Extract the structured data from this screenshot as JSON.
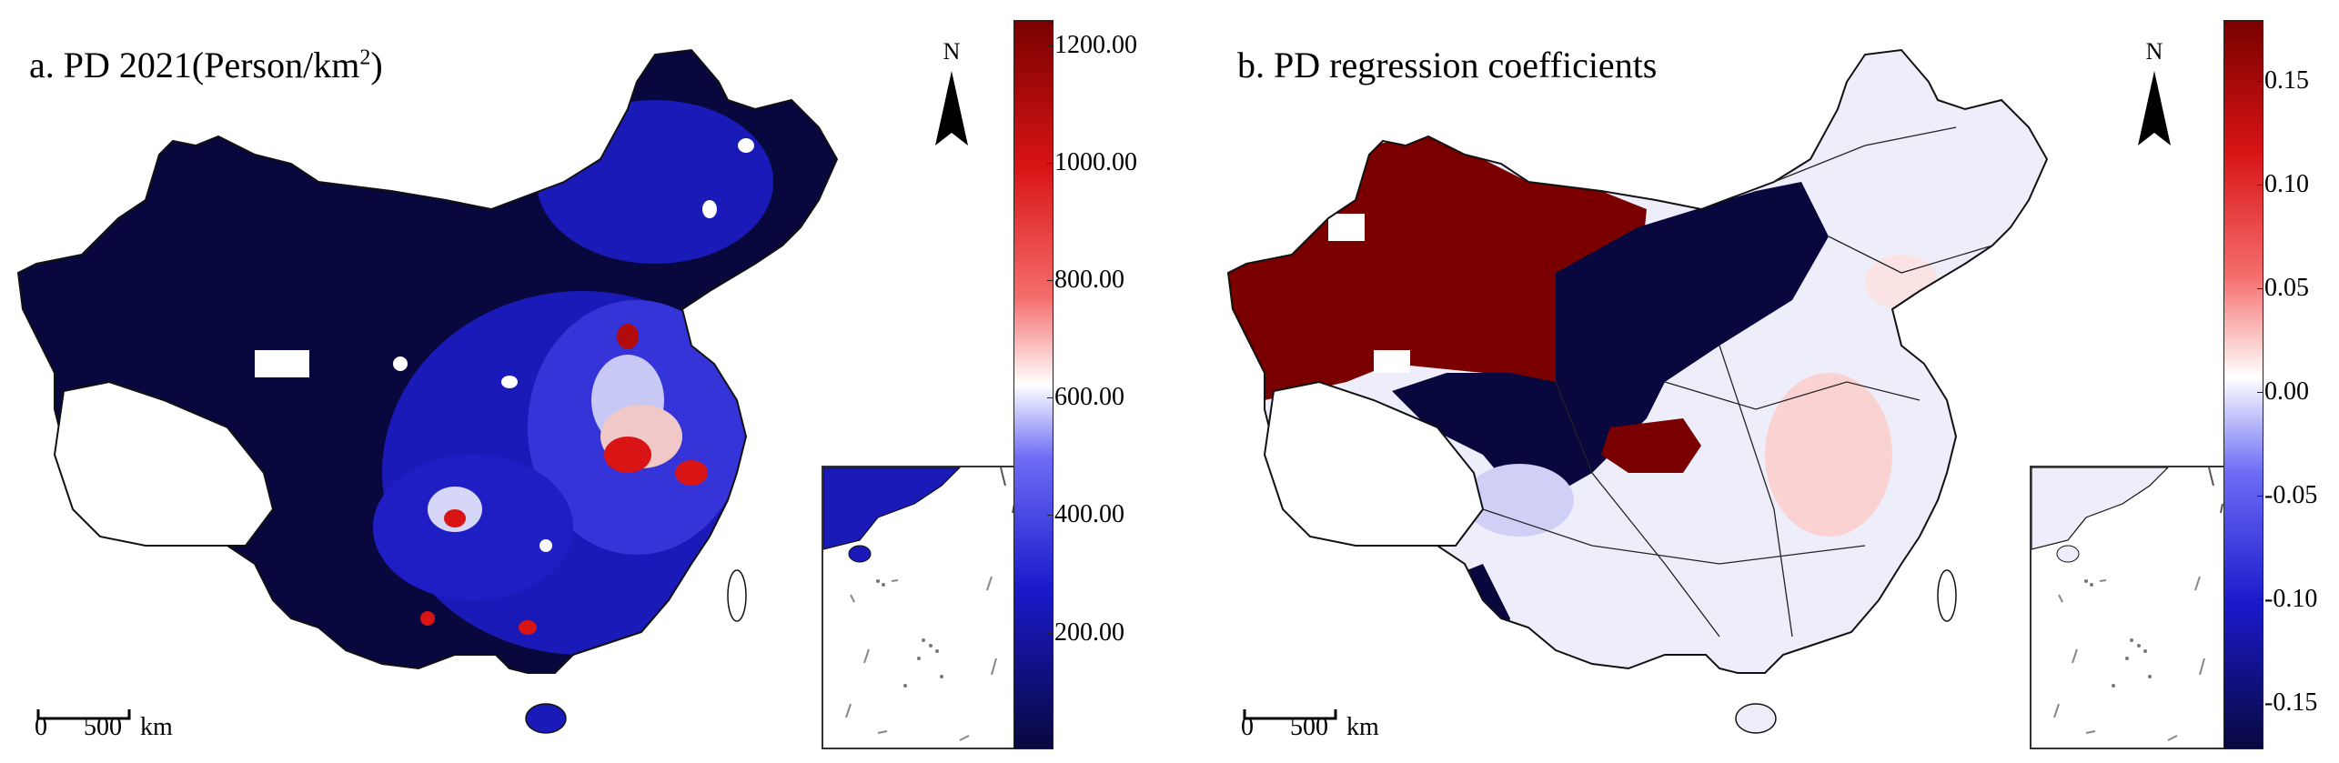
{
  "panels": [
    {
      "title": "a. PD 2021(Person/km",
      "title_sup": "2",
      "title_end": ")",
      "north_label": "N",
      "scale": {
        "zero": "0",
        "dist": "500",
        "unit": "km"
      },
      "colorbar_ticks": [
        "1200.00",
        "1000.00",
        "800.00",
        "600.00",
        "400.00",
        "200.00"
      ],
      "colormap": {
        "low": "#08083f",
        "mid": "#ffffff",
        "high": "#7a0000"
      }
    },
    {
      "title": "b. PD regression coefficients",
      "north_label": "N",
      "scale": {
        "zero": "0",
        "dist": "500",
        "unit": "km"
      },
      "colorbar_ticks": [
        "0.15",
        "0.10",
        "0.05",
        "0.00",
        "-0.05",
        "-0.10",
        "-0.15"
      ],
      "colormap": {
        "low": "#08083f",
        "mid": "#ffffff",
        "high": "#7a0000"
      }
    }
  ]
}
